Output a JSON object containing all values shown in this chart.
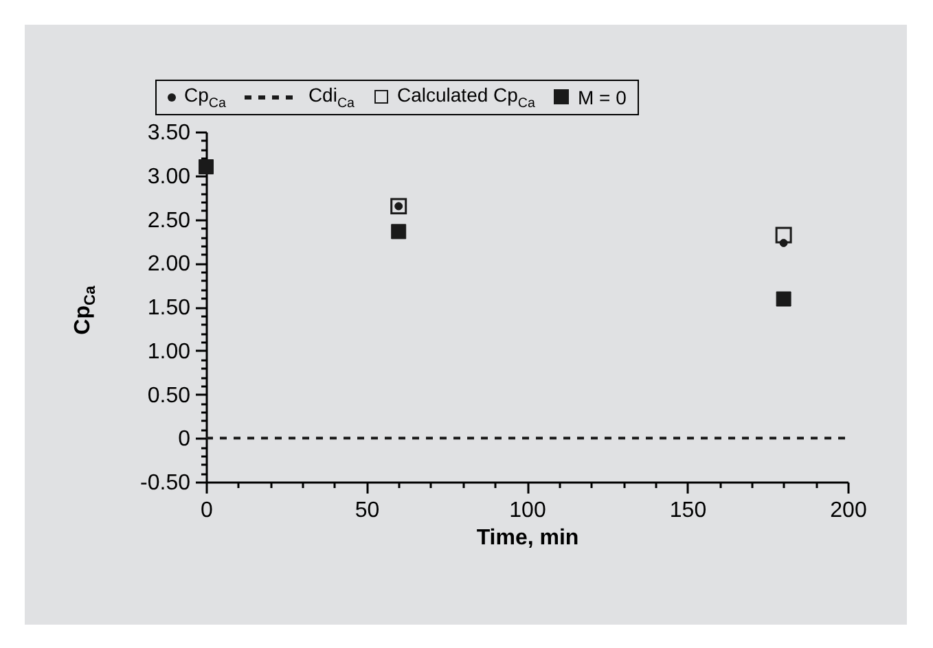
{
  "chart_data": {
    "type": "scatter",
    "xlabel": "Time, min",
    "ylabel": "Cp$_{Ca}$",
    "xlim": [
      0,
      200
    ],
    "ylim": [
      -0.5,
      3.5
    ],
    "xticks": [
      0,
      {
        "value": 10,
        "label": null
      },
      {
        "value": 20,
        "label": null
      },
      {
        "value": 30,
        "label": null
      },
      {
        "value": 40,
        "label": null
      },
      50,
      {
        "value": 60,
        "label": null
      },
      {
        "value": 70,
        "label": null
      },
      {
        "value": 80,
        "label": null
      },
      {
        "value": 90,
        "label": null
      },
      100,
      {
        "value": 110,
        "label": null
      },
      {
        "value": 120,
        "label": null
      },
      {
        "value": 130,
        "label": null
      },
      {
        "value": 140,
        "label": null
      },
      150,
      {
        "value": 160,
        "label": null
      },
      {
        "value": 170,
        "label": null
      },
      {
        "value": 180,
        "label": null
      },
      {
        "value": 190,
        "label": null
      },
      200
    ],
    "yticks": [
      {
        "value": -0.5,
        "label": "-0.50"
      },
      {
        "value": -0.4,
        "label": null
      },
      {
        "value": -0.3,
        "label": null
      },
      {
        "value": -0.2,
        "label": null
      },
      {
        "value": -0.1,
        "label": null
      },
      0,
      {
        "value": 0.1,
        "label": null
      },
      {
        "value": 0.2,
        "label": null
      },
      {
        "value": 0.3,
        "label": null
      },
      {
        "value": 0.4,
        "label": null
      },
      {
        "value": 0.5,
        "label": "0.50"
      },
      {
        "value": 0.6,
        "label": null
      },
      {
        "value": 0.7,
        "label": null
      },
      {
        "value": 0.8,
        "label": null
      },
      {
        "value": 0.9,
        "label": null
      },
      {
        "value": 1,
        "label": "1.00"
      },
      {
        "value": 1.1,
        "label": null
      },
      {
        "value": 1.2,
        "label": null
      },
      {
        "value": 1.3,
        "label": null
      },
      {
        "value": 1.4,
        "label": null
      },
      {
        "value": 1.5,
        "label": "1.50"
      },
      {
        "value": 1.6,
        "label": null
      },
      {
        "value": 1.7,
        "label": null
      },
      {
        "value": 1.8,
        "label": null
      },
      {
        "value": 1.9,
        "label": null
      },
      {
        "value": 2,
        "label": "2.00"
      },
      {
        "value": 2.1,
        "label": null
      },
      {
        "value": 2.2,
        "label": null
      },
      {
        "value": 2.3,
        "label": null
      },
      {
        "value": 2.4,
        "label": null
      },
      {
        "value": 2.5,
        "label": "2.50"
      },
      {
        "value": 2.6,
        "label": null
      },
      {
        "value": 2.7,
        "label": null
      },
      {
        "value": 2.8,
        "label": null
      },
      {
        "value": 2.9,
        "label": null
      },
      {
        "value": 3,
        "label": "3.00"
      },
      {
        "value": 3.1,
        "label": null
      },
      {
        "value": 3.2,
        "label": null
      },
      {
        "value": 3.3,
        "label": null
      },
      {
        "value": 3.4,
        "label": null
      },
      {
        "value": 3.5,
        "label": "3.50"
      }
    ],
    "grid": false,
    "legend": "top",
    "series": [
      {
        "name": "Cp$_{Ca}$",
        "type": "scatter",
        "marker": "circle",
        "color": "#1a1a1a",
        "x": [
          60,
          180
        ],
        "values": [
          2.65,
          2.23
        ]
      },
      {
        "name": "Cdi$_{Ca}$",
        "type": "line",
        "marker": "none",
        "line_style": "dashed",
        "color": "#1a1a1a",
        "x": [
          0,
          200
        ],
        "values": [
          0,
          0
        ]
      },
      {
        "name": "Calculated Cp$_{Ca}$",
        "type": "scatter",
        "marker": "square",
        "color": "#1a1a1a",
        "x": [
          60,
          180
        ],
        "values": [
          2.65,
          2.32
        ]
      },
      {
        "name": "M = 0",
        "type": "scatter",
        "marker": "square",
        "color": "#1a1a1a",
        "x": [
          0,
          60,
          180
        ],
        "values": [
          3.1,
          2.36,
          1.59
        ]
      }
    ]
  }
}
